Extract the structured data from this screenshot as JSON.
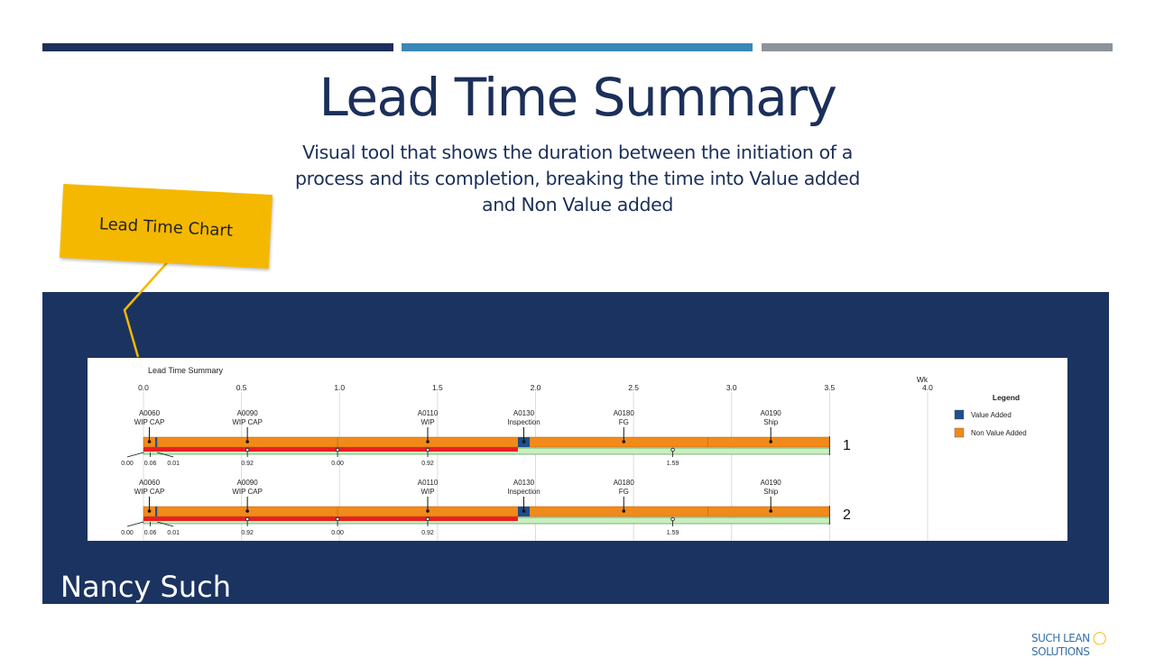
{
  "header_bars": [
    {
      "color": "#1b2f5a"
    },
    {
      "color": "#3a87b8"
    },
    {
      "color": "#8c939a"
    }
  ],
  "slide": {
    "title": "Lead Time Summary",
    "subtitle": "Visual tool that shows the duration between the initiation of a process and its completion, breaking the time into Value added and Non Value added",
    "callout": "Lead Time Chart",
    "presenter": "Nancy Such",
    "footer_brand": "SUCH LEAN",
    "footer_brand2": "SOLUTIONS"
  },
  "colors": {
    "panel": "#1b3360",
    "value_added": "#1f4e8c",
    "non_value_added": "#f28a1a",
    "red_track": "#e82020",
    "green_track": "#c8efc0",
    "callout": "#f5b800"
  },
  "chart_data": {
    "type": "bar",
    "title": "Lead Time Summary",
    "unit": "Wk",
    "xlim": [
      0,
      4.0
    ],
    "xticks": [
      "0.0",
      "0.5",
      "1.0",
      "1.5",
      "2.0",
      "2.5",
      "3.0",
      "3.5",
      "4.0"
    ],
    "grid": true,
    "legend": {
      "title": "Legend",
      "position": "right",
      "entries": [
        {
          "name": "Value Added",
          "color": "#1f4e8c"
        },
        {
          "name": "Non Value Added",
          "color": "#f28a1a"
        }
      ]
    },
    "rows": [
      {
        "label": "1",
        "end": 3.5,
        "red_end": 1.91,
        "va_segments": [
          [
            0.06,
            0.07
          ],
          [
            1.91,
            1.97
          ]
        ],
        "operations": [
          {
            "code": "A0060",
            "name": "WIP CAP",
            "x": 0.03
          },
          {
            "code": "A0090",
            "name": "WIP CAP",
            "x": 0.53
          },
          {
            "code": "A0110",
            "name": "WIP",
            "x": 1.45
          },
          {
            "code": "A0130",
            "name": "Inspection",
            "x": 1.94
          },
          {
            "code": "A0180",
            "name": "FG",
            "x": 2.45
          },
          {
            "code": "A0190",
            "name": "Ship",
            "x": 3.2
          }
        ],
        "durations": [
          {
            "label": "0.00",
            "x": 0.0
          },
          {
            "label": "0.06",
            "x": 0.035
          },
          {
            "label": "0.01",
            "x": 0.07
          },
          {
            "label": "0.92",
            "x": 0.53
          },
          {
            "label": "0.00",
            "x": 0.99
          },
          {
            "label": "0.92",
            "x": 1.45
          },
          {
            "label": "1.59",
            "x": 2.7
          }
        ]
      },
      {
        "label": "2",
        "end": 3.5,
        "red_end": 1.91,
        "va_segments": [
          [
            0.06,
            0.07
          ],
          [
            1.91,
            1.97
          ]
        ],
        "operations": [
          {
            "code": "A0060",
            "name": "WIP CAP",
            "x": 0.03
          },
          {
            "code": "A0090",
            "name": "WIP CAP",
            "x": 0.53
          },
          {
            "code": "A0110",
            "name": "WIP",
            "x": 1.45
          },
          {
            "code": "A0130",
            "name": "Inspection",
            "x": 1.94
          },
          {
            "code": "A0180",
            "name": "FG",
            "x": 2.45
          },
          {
            "code": "A0190",
            "name": "Ship",
            "x": 3.2
          }
        ],
        "durations": [
          {
            "label": "0.00",
            "x": 0.0
          },
          {
            "label": "0.06",
            "x": 0.035
          },
          {
            "label": "0.01",
            "x": 0.07
          },
          {
            "label": "0.92",
            "x": 0.53
          },
          {
            "label": "0.00",
            "x": 0.99
          },
          {
            "label": "0.92",
            "x": 1.45
          },
          {
            "label": "1.59",
            "x": 2.7
          }
        ]
      }
    ]
  }
}
